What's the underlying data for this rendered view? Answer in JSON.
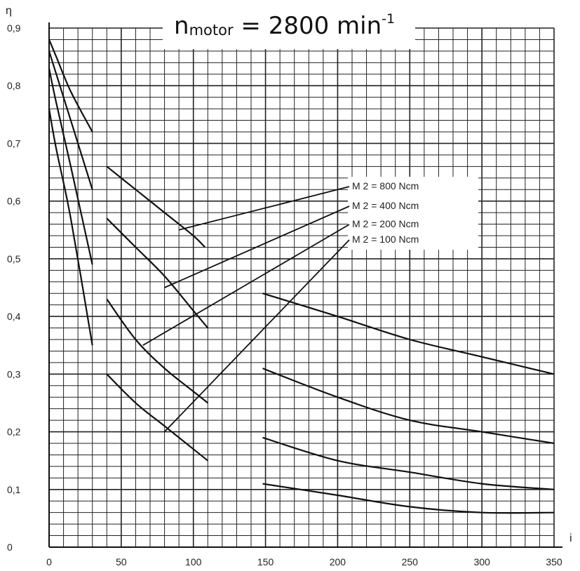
{
  "chart_data": {
    "type": "line",
    "title": {
      "prefix": "n",
      "subscript": "motor",
      "middle": " = 2800 min",
      "superscript": "-1"
    },
    "xlabel": "i",
    "ylabel": "η",
    "xlim": [
      0,
      350
    ],
    "ylim": [
      0,
      0.9
    ],
    "x_ticks": [
      "0",
      "50",
      "100",
      "150",
      "200",
      "250",
      "300",
      "350"
    ],
    "y_ticks": [
      "0",
      "0,1",
      "0,2",
      "0,3",
      "0,4",
      "0,5",
      "0,6",
      "0,7",
      "0,8",
      "0,9"
    ],
    "grid": true,
    "legend_items": [
      "M 2 = 800 Ncm",
      "M 2 = 400 Ncm",
      "M 2 = 200 Ncm",
      "M 2 = 100 Ncm"
    ],
    "series": [
      {
        "name": "M 2 = 800 Ncm",
        "segments": [
          {
            "x": [
              0,
              5,
              15,
              30
            ],
            "y": [
              0.88,
              0.85,
              0.79,
              0.72
            ]
          },
          {
            "x": [
              40,
              60,
              80,
              100,
              108
            ],
            "y": [
              0.66,
              0.62,
              0.58,
              0.54,
              0.52
            ]
          },
          {
            "x": [
              148,
              200,
              250,
              300,
              350
            ],
            "y": [
              0.44,
              0.4,
              0.36,
              0.33,
              0.3
            ]
          }
        ]
      },
      {
        "name": "M 2 = 400 Ncm",
        "segments": [
          {
            "x": [
              0,
              5,
              15,
              30
            ],
            "y": [
              0.86,
              0.82,
              0.74,
              0.62
            ]
          },
          {
            "x": [
              40,
              60,
              80,
              100,
              110
            ],
            "y": [
              0.57,
              0.52,
              0.47,
              0.41,
              0.38
            ]
          },
          {
            "x": [
              148,
              200,
              250,
              300,
              350
            ],
            "y": [
              0.31,
              0.26,
              0.22,
              0.2,
              0.18
            ]
          }
        ]
      },
      {
        "name": "M 2 = 200 Ncm",
        "segments": [
          {
            "x": [
              0,
              5,
              15,
              30
            ],
            "y": [
              0.83,
              0.77,
              0.66,
              0.49
            ]
          },
          {
            "x": [
              40,
              60,
              80,
              100,
              110
            ],
            "y": [
              0.43,
              0.36,
              0.31,
              0.27,
              0.25
            ]
          },
          {
            "x": [
              148,
              200,
              250,
              300,
              350
            ],
            "y": [
              0.19,
              0.15,
              0.13,
              0.11,
              0.1
            ]
          }
        ]
      },
      {
        "name": "M 2 = 100 Ncm",
        "segments": [
          {
            "x": [
              0,
              5,
              15,
              30
            ],
            "y": [
              0.76,
              0.69,
              0.57,
              0.35
            ]
          },
          {
            "x": [
              40,
              60,
              80,
              100,
              110
            ],
            "y": [
              0.3,
              0.25,
              0.21,
              0.17,
              0.15
            ]
          },
          {
            "x": [
              148,
              200,
              250,
              300,
              350
            ],
            "y": [
              0.11,
              0.09,
              0.07,
              0.06,
              0.06
            ]
          }
        ]
      }
    ]
  }
}
